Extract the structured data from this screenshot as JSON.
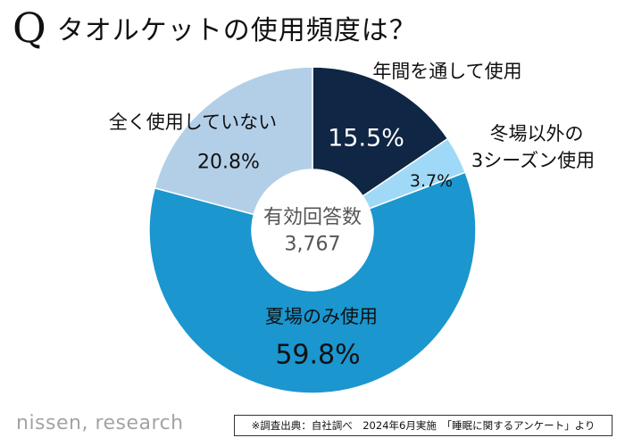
{
  "header": {
    "q_mark": "Q",
    "title": "タオルケットの使用頻度は？"
  },
  "chart_data": {
    "type": "pie",
    "center_label": "有効回答数",
    "center_value": "3,767",
    "categories": [
      "年間を通して使用",
      "冬場以外の3シーズン使用",
      "夏場のみ使用",
      "全く使用していない"
    ],
    "values": [
      15.5,
      3.7,
      59.8,
      20.8
    ],
    "value_labels": [
      "15.5%",
      "3.7%",
      "59.8%",
      "20.8%"
    ],
    "colors": [
      "#0f2644",
      "#9fd9f7",
      "#1b96cf",
      "#b3cfe8"
    ],
    "category_label_lines": [
      [
        "年間を通して使用"
      ],
      [
        "冬場以外の",
        "3シーズン使用"
      ],
      [
        "夏場のみ使用"
      ],
      [
        "全く使用していない"
      ]
    ]
  },
  "footer": {
    "brand": "nissen, research",
    "source": "※調査出典：自社調べ　2024年6月実施　「睡眠に関するアンケート」より"
  }
}
